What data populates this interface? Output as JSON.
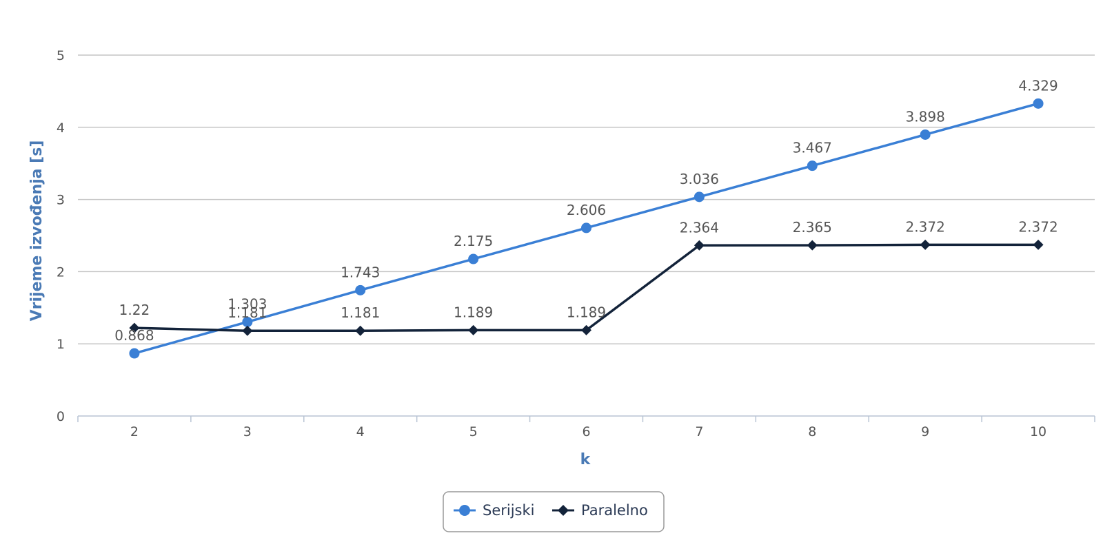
{
  "chart_data": {
    "type": "line",
    "title": "",
    "xlabel": "k",
    "ylabel": "Vrijeme izvođenja [s]",
    "categories": [
      "2",
      "3",
      "4",
      "5",
      "6",
      "7",
      "8",
      "9",
      "10"
    ],
    "ylim": [
      0,
      5
    ],
    "yticks": [
      "0",
      "1",
      "2",
      "3",
      "4",
      "5"
    ],
    "grid": true,
    "legend_position": "bottom",
    "series": [
      {
        "name": "Serijski",
        "color": "#3a7fd5",
        "marker": "circle",
        "values": [
          0.868,
          1.303,
          1.743,
          2.175,
          2.606,
          3.036,
          3.467,
          3.898,
          4.329
        ],
        "labels": [
          "0.868",
          "1.303",
          "1.743",
          "2.175",
          "2.606",
          "3.036",
          "3.467",
          "3.898",
          "4.329"
        ]
      },
      {
        "name": "Paralelno",
        "color": "#13233a",
        "marker": "diamond",
        "values": [
          1.22,
          1.181,
          1.181,
          1.189,
          1.189,
          2.364,
          2.365,
          2.372,
          2.372
        ],
        "labels": [
          "1.22",
          "1.181",
          "1.181",
          "1.189",
          "1.189",
          "2.364",
          "2.365",
          "2.372",
          "2.372"
        ]
      }
    ]
  }
}
